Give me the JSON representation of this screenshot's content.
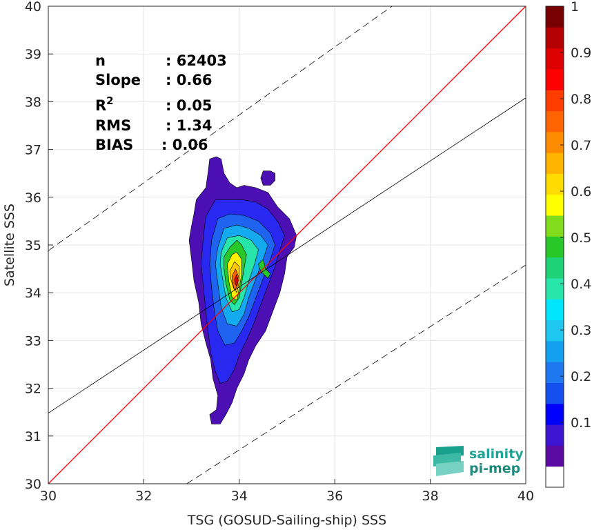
{
  "chart_data": {
    "type": "scatter",
    "subtype": "density-contour",
    "xlabel": "TSG (GOSUD-Sailing-ship) SSS",
    "ylabel": "Satellite SSS",
    "xlim": [
      30,
      40
    ],
    "ylim": [
      30,
      40
    ],
    "xticks": [
      "30",
      "32",
      "34",
      "36",
      "38",
      "40"
    ],
    "yticks": [
      "30",
      "31",
      "32",
      "33",
      "34",
      "35",
      "36",
      "37",
      "38",
      "39",
      "40"
    ],
    "grid": true,
    "stats": [
      {
        "label": "n",
        "value": ": 62403"
      },
      {
        "label": "Slope",
        "value": ": 0.66"
      },
      {
        "label": "R",
        "sup": "2",
        "value": ": 0.05"
      },
      {
        "label": "RMS",
        "value": ": 1.34"
      },
      {
        "label": "BIAS",
        "value": ": 0.06"
      }
    ],
    "lines": {
      "identity": {
        "x": [
          30,
          40
        ],
        "y": [
          30,
          40
        ],
        "color": "#ff0000"
      },
      "fit": {
        "x": [
          30,
          40
        ],
        "y": [
          31.48,
          38.08
        ],
        "color": "#000000"
      },
      "upper_bound": {
        "x": [
          30,
          37.2
        ],
        "y": [
          34.88,
          40
        ],
        "color": "#000000",
        "dashed": true
      },
      "lower_bound": {
        "x": [
          32.9,
          40
        ],
        "y": [
          30,
          34.58
        ],
        "color": "#000000",
        "dashed": true
      }
    },
    "contours": [
      {
        "level": 0.05,
        "color": "#4b0fb4",
        "points": [
          [
            33.05,
            35.65
          ],
          [
            33.1,
            35.95
          ],
          [
            33.3,
            36.2
          ],
          [
            33.35,
            36.55
          ],
          [
            33.38,
            36.8
          ],
          [
            33.52,
            36.85
          ],
          [
            33.62,
            36.8
          ],
          [
            33.68,
            36.5
          ],
          [
            33.8,
            36.3
          ],
          [
            33.95,
            36.2
          ],
          [
            34.1,
            36.25
          ],
          [
            34.35,
            36.2
          ],
          [
            34.6,
            36.1
          ],
          [
            34.8,
            35.8
          ],
          [
            35.05,
            35.55
          ],
          [
            35.2,
            35.2
          ],
          [
            35.15,
            34.95
          ],
          [
            35.0,
            34.75
          ],
          [
            34.95,
            34.4
          ],
          [
            34.85,
            34.0
          ],
          [
            34.7,
            33.6
          ],
          [
            34.55,
            33.2
          ],
          [
            34.35,
            32.9
          ],
          [
            34.2,
            32.6
          ],
          [
            34.1,
            32.3
          ],
          [
            33.95,
            32.0
          ],
          [
            33.85,
            31.7
          ],
          [
            33.72,
            31.45
          ],
          [
            33.6,
            31.25
          ],
          [
            33.42,
            31.25
          ],
          [
            33.38,
            31.45
          ],
          [
            33.52,
            31.55
          ],
          [
            33.55,
            31.85
          ],
          [
            33.45,
            32.2
          ],
          [
            33.4,
            32.6
          ],
          [
            33.3,
            32.95
          ],
          [
            33.2,
            33.35
          ],
          [
            33.15,
            33.8
          ],
          [
            33.05,
            34.25
          ],
          [
            33.0,
            34.7
          ],
          [
            32.95,
            35.1
          ],
          [
            33.0,
            35.4
          ]
        ]
      },
      {
        "level": 0.05,
        "color": "#4b0fb4",
        "points": [
          [
            34.65,
            36.55
          ],
          [
            34.75,
            36.5
          ],
          [
            34.75,
            36.35
          ],
          [
            34.65,
            36.25
          ],
          [
            34.5,
            36.25
          ],
          [
            34.45,
            36.4
          ],
          [
            34.5,
            36.55
          ]
        ]
      },
      {
        "level": 0.15,
        "color": "#2828f0",
        "points": [
          [
            33.25,
            35.2
          ],
          [
            33.3,
            35.6
          ],
          [
            33.5,
            35.95
          ],
          [
            33.75,
            35.95
          ],
          [
            34.05,
            35.95
          ],
          [
            34.35,
            35.9
          ],
          [
            34.6,
            35.75
          ],
          [
            34.8,
            35.5
          ],
          [
            34.95,
            35.2
          ],
          [
            34.85,
            34.9
          ],
          [
            34.75,
            34.55
          ],
          [
            34.6,
            34.15
          ],
          [
            34.45,
            33.75
          ],
          [
            34.3,
            33.35
          ],
          [
            34.15,
            33.0
          ],
          [
            34.0,
            32.7
          ],
          [
            33.9,
            32.4
          ],
          [
            33.75,
            32.15
          ],
          [
            33.6,
            32.1
          ],
          [
            33.5,
            32.35
          ],
          [
            33.4,
            32.75
          ],
          [
            33.35,
            33.15
          ],
          [
            33.3,
            33.6
          ],
          [
            33.25,
            34.1
          ],
          [
            33.2,
            34.6
          ]
        ]
      },
      {
        "level": 0.25,
        "color": "#1e64f0",
        "points": [
          [
            33.42,
            35.1
          ],
          [
            33.55,
            35.55
          ],
          [
            33.8,
            35.65
          ],
          [
            34.1,
            35.62
          ],
          [
            34.4,
            35.5
          ],
          [
            34.65,
            35.25
          ],
          [
            34.75,
            35.0
          ],
          [
            34.65,
            34.7
          ],
          [
            34.5,
            34.3
          ],
          [
            34.35,
            33.9
          ],
          [
            34.2,
            33.5
          ],
          [
            34.05,
            33.2
          ],
          [
            33.9,
            32.95
          ],
          [
            33.7,
            32.9
          ],
          [
            33.55,
            33.2
          ],
          [
            33.48,
            33.6
          ],
          [
            33.42,
            34.1
          ],
          [
            33.38,
            34.6
          ]
        ]
      },
      {
        "level": 0.35,
        "color": "#14aaf0",
        "points": [
          [
            33.55,
            34.95
          ],
          [
            33.68,
            35.35
          ],
          [
            33.95,
            35.42
          ],
          [
            34.2,
            35.35
          ],
          [
            34.45,
            35.2
          ],
          [
            34.6,
            35.0
          ],
          [
            34.5,
            34.7
          ],
          [
            34.35,
            34.3
          ],
          [
            34.2,
            33.9
          ],
          [
            34.1,
            33.55
          ],
          [
            33.95,
            33.3
          ],
          [
            33.75,
            33.35
          ],
          [
            33.62,
            33.7
          ],
          [
            33.55,
            34.2
          ],
          [
            33.5,
            34.6
          ]
        ]
      },
      {
        "level": 0.45,
        "color": "#28e6aa",
        "points": [
          [
            33.62,
            34.85
          ],
          [
            33.75,
            35.15
          ],
          [
            34.0,
            35.2
          ],
          [
            34.25,
            35.1
          ],
          [
            34.4,
            34.9
          ],
          [
            34.32,
            34.6
          ],
          [
            34.2,
            34.25
          ],
          [
            34.1,
            33.9
          ],
          [
            34.0,
            33.65
          ],
          [
            33.85,
            33.6
          ],
          [
            33.72,
            33.9
          ],
          [
            33.65,
            34.3
          ],
          [
            33.6,
            34.6
          ]
        ]
      },
      {
        "level": 0.55,
        "color": "#28c828",
        "points": [
          [
            33.68,
            34.75
          ],
          [
            33.8,
            34.95
          ],
          [
            33.95,
            35.1
          ],
          [
            34.05,
            35.0
          ],
          [
            34.15,
            34.8
          ],
          [
            34.1,
            34.5
          ],
          [
            34.05,
            34.2
          ],
          [
            34.0,
            33.9
          ],
          [
            33.9,
            33.75
          ],
          [
            33.8,
            33.85
          ],
          [
            33.72,
            34.2
          ],
          [
            33.68,
            34.5
          ]
        ]
      },
      {
        "level": 0.55,
        "color": "#28c828",
        "points": [
          [
            34.5,
            34.7
          ],
          [
            34.55,
            34.5
          ],
          [
            34.65,
            34.4
          ],
          [
            34.6,
            34.3
          ],
          [
            34.45,
            34.45
          ],
          [
            34.4,
            34.6
          ]
        ]
      },
      {
        "level": 0.65,
        "color": "#fff000",
        "points": [
          [
            33.75,
            34.6
          ],
          [
            33.85,
            34.8
          ],
          [
            33.95,
            34.85
          ],
          [
            34.05,
            34.7
          ],
          [
            34.05,
            34.4
          ],
          [
            34.0,
            34.1
          ],
          [
            33.95,
            33.85
          ],
          [
            33.85,
            33.9
          ],
          [
            33.78,
            34.25
          ]
        ]
      },
      {
        "level": 0.7,
        "color": "#ffc800",
        "points": [
          [
            33.8,
            34.45
          ],
          [
            33.9,
            34.65
          ],
          [
            34.0,
            34.55
          ],
          [
            34.0,
            34.25
          ],
          [
            33.95,
            34.0
          ],
          [
            33.88,
            34.1
          ],
          [
            33.82,
            34.3
          ]
        ]
      },
      {
        "level": 0.8,
        "color": "#ff6400",
        "points": [
          [
            33.85,
            34.35
          ],
          [
            33.92,
            34.5
          ],
          [
            33.98,
            34.35
          ],
          [
            33.96,
            34.15
          ],
          [
            33.9,
            34.05
          ],
          [
            33.86,
            34.2
          ]
        ]
      },
      {
        "level": 0.9,
        "color": "#dc0000",
        "points": [
          [
            33.9,
            34.28
          ],
          [
            33.94,
            34.38
          ],
          [
            33.98,
            34.26
          ],
          [
            33.95,
            34.14
          ],
          [
            33.91,
            34.18
          ]
        ]
      }
    ],
    "colorbar": {
      "ticks": [
        "0.1",
        "0.2",
        "0.3",
        "0.4",
        "0.5",
        "0.6",
        "0.7",
        "0.8",
        "0.9",
        "1"
      ],
      "colors": [
        "#ffffff",
        "#5a0aa0",
        "#3c14d2",
        "#0000ff",
        "#1450f0",
        "#1e78f0",
        "#14a0f0",
        "#1ec8f0",
        "#00e6ff",
        "#28e6aa",
        "#1ed278",
        "#28c828",
        "#82dc1e",
        "#ffff00",
        "#ffdc00",
        "#ffb400",
        "#ff8c00",
        "#ff6400",
        "#ff3c00",
        "#ff0000",
        "#dc0000",
        "#b40000",
        "#780000"
      ]
    },
    "logo": {
      "line1": "salinity",
      "line2": "pi-mep",
      "color": "#1ea596"
    }
  }
}
